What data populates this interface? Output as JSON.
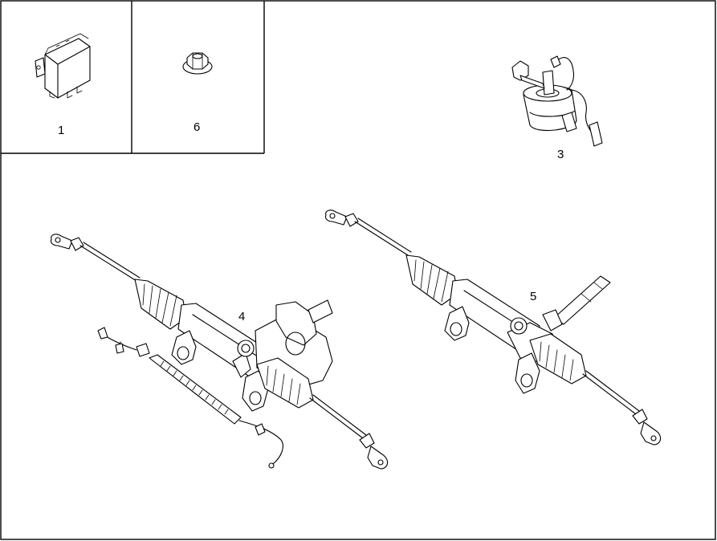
{
  "callouts": {
    "part1": "1",
    "part6": "6",
    "part3": "3",
    "part4": "4",
    "part5": "5"
  },
  "colors": {
    "line": "#000000",
    "background": "#ffffff"
  }
}
